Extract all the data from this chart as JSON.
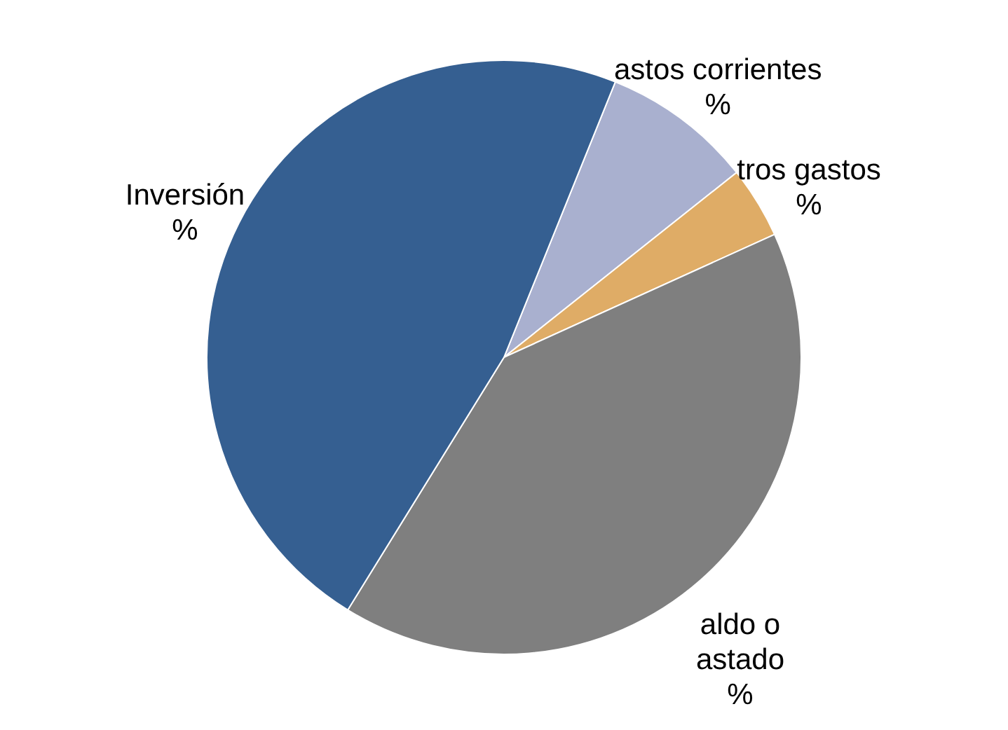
{
  "chart_data": {
    "type": "pie",
    "categories": [
      "astos corrientes\n%",
      "tros gastos\n%",
      "aldo    o\nastado\n%",
      "Inversión\n%"
    ],
    "values": [
      8.2,
      3.9,
      40.6,
      47.3
    ],
    "colors": [
      "#a9b0cf",
      "#dfac66",
      "#7f7f7f",
      "#355f91"
    ]
  }
}
